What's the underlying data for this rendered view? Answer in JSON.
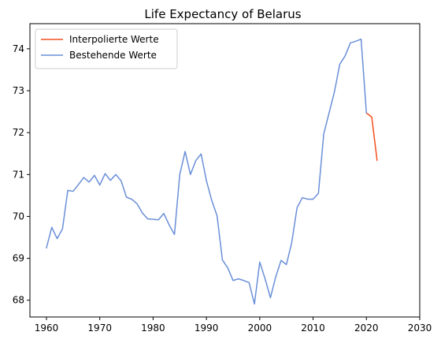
{
  "chart_data": {
    "type": "line",
    "title": "Life Expectancy of Belarus",
    "xlabel": "",
    "ylabel": "",
    "xlim": [
      1956.9,
      2030
    ],
    "ylim": [
      67.6,
      74.6
    ],
    "xticks": [
      1960,
      1970,
      1980,
      1990,
      2000,
      2010,
      2020,
      2030
    ],
    "yticks": [
      68,
      69,
      70,
      71,
      72,
      73,
      74
    ],
    "grid": false,
    "legend_position": "upper-left",
    "series": [
      {
        "name": "Interpolierte Werte",
        "color": "#f4511e",
        "x": [
          2020,
          2021,
          2022
        ],
        "y": [
          72.47,
          72.37,
          71.34
        ]
      },
      {
        "name": "Bestehende Werte",
        "color": "#6a8fd8",
        "x": [
          1960,
          1961,
          1962,
          1963,
          1964,
          1965,
          1966,
          1967,
          1968,
          1969,
          1970,
          1971,
          1972,
          1973,
          1974,
          1975,
          1976,
          1977,
          1978,
          1979,
          1980,
          1981,
          1982,
          1983,
          1984,
          1985,
          1986,
          1987,
          1988,
          1989,
          1990,
          1991,
          1992,
          1993,
          1994,
          1995,
          1996,
          1997,
          1998,
          1999,
          2000,
          2001,
          2002,
          2003,
          2004,
          2005,
          2006,
          2007,
          2008,
          2009,
          2010,
          2011,
          2012,
          2013,
          2014,
          2015,
          2016,
          2017,
          2018,
          2019,
          2020
        ],
        "y": [
          69.25,
          69.74,
          69.47,
          69.7,
          70.62,
          70.6,
          70.76,
          70.93,
          70.82,
          70.98,
          70.75,
          71.02,
          70.86,
          71.0,
          70.85,
          70.46,
          70.41,
          70.3,
          70.08,
          69.94,
          69.93,
          69.92,
          70.07,
          69.8,
          69.57,
          71.0,
          71.55,
          71.0,
          71.33,
          71.49,
          70.85,
          70.38,
          70.01,
          68.96,
          68.77,
          68.47,
          68.51,
          68.47,
          68.42,
          67.91,
          68.91,
          68.51,
          68.06,
          68.56,
          68.95,
          68.85,
          69.38,
          70.21,
          70.45,
          70.41,
          70.41,
          70.55,
          71.97,
          72.47,
          72.97,
          73.63,
          73.83,
          74.14,
          74.18,
          74.23,
          72.47
        ]
      }
    ]
  }
}
